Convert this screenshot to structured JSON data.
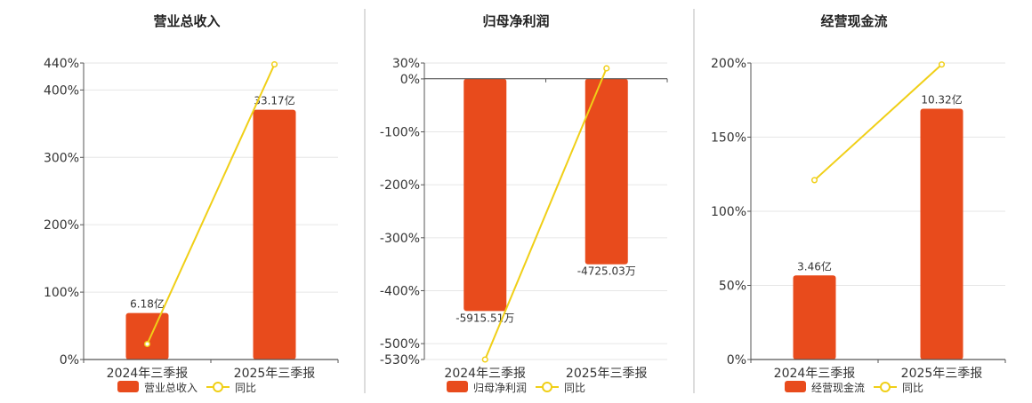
{
  "colors": {
    "bar": "#e84b1c",
    "line": "#f0cf17",
    "axis": "#555555",
    "grid": "#e6e6e6",
    "divider": "#bbbbbb",
    "text": "#333333"
  },
  "line_legend_label": "同比",
  "chart_data": [
    {
      "type": "bar",
      "title": "营业总收入",
      "categories": [
        "2024年三季报",
        "2025年三季报"
      ],
      "bar_series_name": "营业总收入",
      "bar_values": [
        6.18,
        33.17
      ],
      "bar_labels": [
        "6.18亿",
        "33.17亿"
      ],
      "bar_unit": "亿",
      "bar_range": [
        0,
        39.37
      ],
      "line_series_name": "同比",
      "line_values_pct": [
        23,
        438
      ],
      "y_ticks_pct": [
        0,
        100,
        200,
        300,
        400,
        440
      ],
      "y_tick_labels": [
        "0%",
        "100%",
        "200%",
        "300%",
        "400%",
        "440%"
      ],
      "ylim_pct": [
        0,
        440
      ],
      "legend_position": "bottom",
      "grid": true
    },
    {
      "type": "bar",
      "title": "归母净利润",
      "categories": [
        "2024年三季报",
        "2025年三季报"
      ],
      "bar_series_name": "归母净利润",
      "bar_values": [
        -5915.51,
        -4725.03
      ],
      "bar_labels": [
        "-5915.51万",
        "-4725.03万"
      ],
      "bar_unit": "万",
      "bar_range": [
        -7150,
        400
      ],
      "line_series_name": "同比",
      "line_values_pct": [
        -530,
        20
      ],
      "y_ticks_pct": [
        -530,
        -500,
        -400,
        -300,
        -200,
        -100,
        0,
        30
      ],
      "y_tick_labels": [
        "-530%",
        "-500%",
        "-400%",
        "-300%",
        "-200%",
        "-100%",
        "0%",
        "30%"
      ],
      "ylim_pct": [
        -530,
        30
      ],
      "legend_position": "bottom",
      "grid": true
    },
    {
      "type": "bar",
      "title": "经营现金流",
      "categories": [
        "2024年三季报",
        "2025年三季报"
      ],
      "bar_series_name": "经营现金流",
      "bar_values": [
        3.46,
        10.32
      ],
      "bar_labels": [
        "3.46亿",
        "10.32亿"
      ],
      "bar_unit": "亿",
      "bar_range": [
        0,
        12.2
      ],
      "line_series_name": "同比",
      "line_values_pct": [
        121,
        199
      ],
      "y_ticks_pct": [
        0,
        50,
        100,
        150,
        200
      ],
      "y_tick_labels": [
        "0%",
        "50%",
        "100%",
        "150%",
        "200%"
      ],
      "ylim_pct": [
        0,
        200
      ],
      "legend_position": "bottom",
      "grid": true
    }
  ]
}
